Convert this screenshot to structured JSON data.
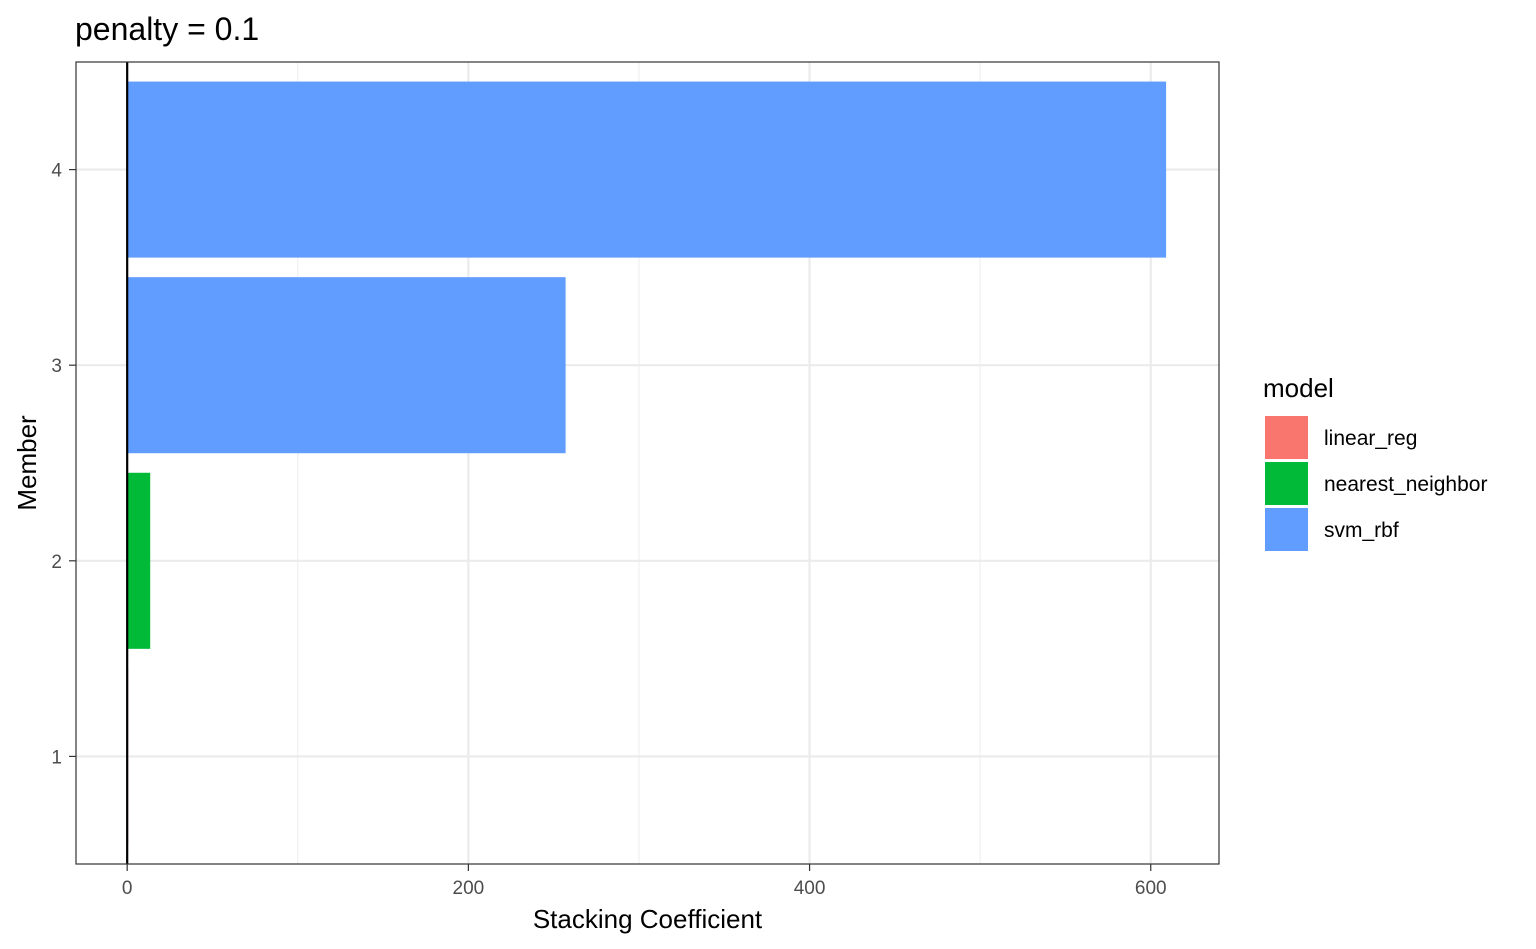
{
  "chart_data": {
    "type": "bar",
    "orientation": "horizontal",
    "title": "penalty = 0.1",
    "xlabel": "Stacking Coefficient",
    "ylabel": "Member",
    "xlim": [
      -30,
      640
    ],
    "ylim": [
      0.45,
      4.55
    ],
    "x_ticks": [
      "0",
      "200",
      "400",
      "600"
    ],
    "x_tick_values": [
      0,
      200,
      400,
      600
    ],
    "y_ticks": [
      "1",
      "2",
      "3",
      "4"
    ],
    "y_tick_values": [
      1,
      2,
      3,
      4
    ],
    "categories": [
      1,
      2,
      3,
      4
    ],
    "values": [
      0.5,
      13.5,
      257,
      609
    ],
    "bar_models": [
      "linear_reg",
      "nearest_neighbor",
      "svm_rbf",
      "svm_rbf"
    ],
    "reference_line_x": 0,
    "grid": true,
    "legend": {
      "title": "model",
      "placement": "right",
      "entries": [
        {
          "label": "linear_reg",
          "color": "#F8766D"
        },
        {
          "label": "nearest_neighbor",
          "color": "#00BA38"
        },
        {
          "label": "svm_rbf",
          "color": "#619CFF"
        }
      ]
    }
  }
}
